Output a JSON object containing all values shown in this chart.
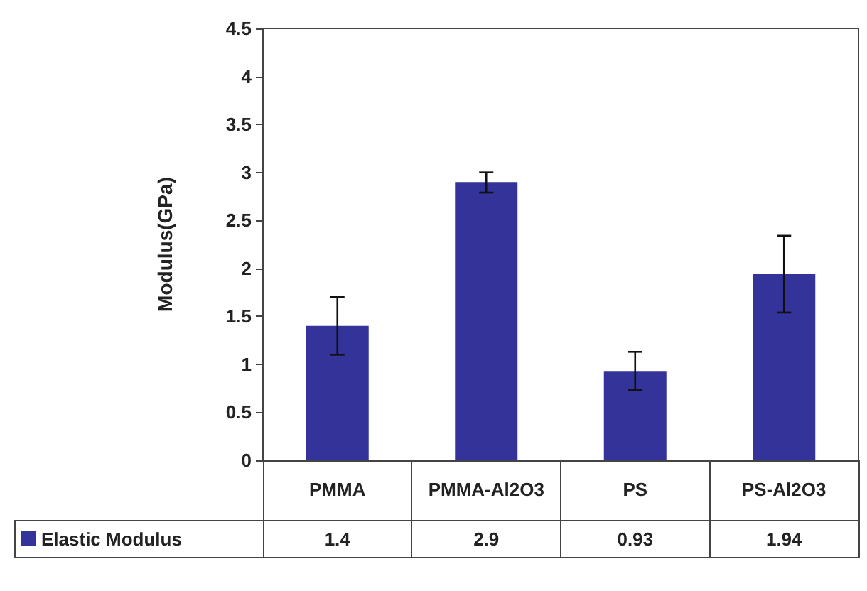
{
  "chart_data": {
    "type": "bar",
    "ylabel": "Modulus(GPa)",
    "categories": [
      "PMMA",
      "PMMA-Al2O3",
      "PS",
      "PS-Al2O3"
    ],
    "series": [
      {
        "name": "Elastic Modulus",
        "color": "#333399",
        "values": [
          1.4,
          2.9,
          0.93,
          1.94
        ],
        "errors": [
          0.3,
          [
            2.79,
            3.0
          ],
          0.2,
          0.4
        ]
      }
    ],
    "ylim": [
      0,
      4.5
    ],
    "yticks": [
      0,
      0.5,
      1,
      1.5,
      2,
      2.5,
      3,
      3.5,
      4,
      4.5
    ],
    "grid": false,
    "legend": "bottom",
    "data_labels": true
  }
}
